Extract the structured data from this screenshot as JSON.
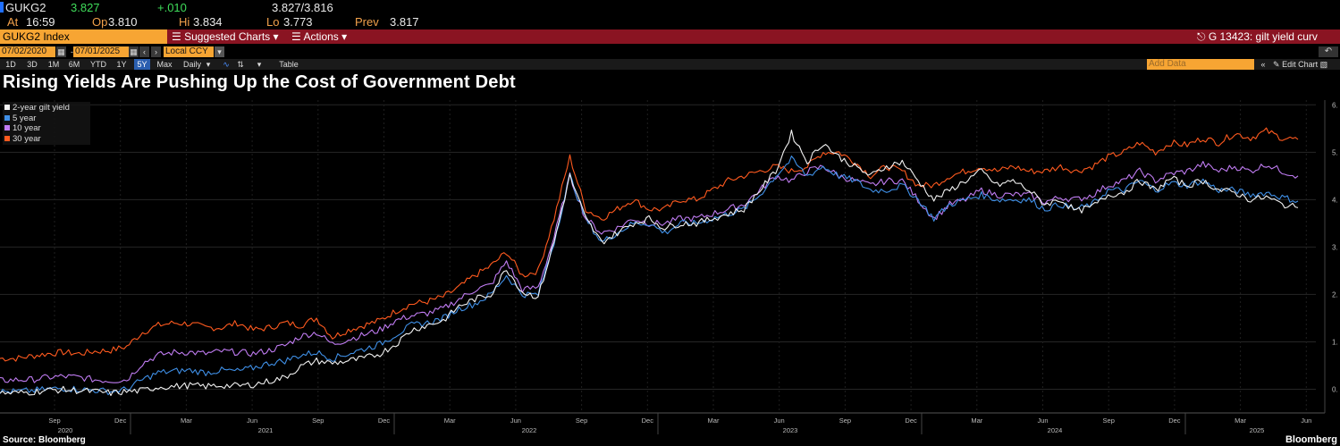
{
  "quote": {
    "ticker": "GUKG2",
    "last": "3.827",
    "change": "+.010",
    "bid_ask": "3.827/3.816",
    "at_label": "At",
    "at_time": "16:59",
    "open_label": "Op",
    "open": "3.810",
    "high_label": "Hi",
    "high": "3.834",
    "low_label": "Lo",
    "low": "3.773",
    "prev_label": "Prev",
    "prev": "3.817"
  },
  "toolbar": {
    "index": "GUKG2 Index",
    "suggested_charts": "Suggested Charts",
    "actions": "Actions",
    "chart_ref": "G 13423: gilt yield curv"
  },
  "date_range": {
    "start": "07/02/2020",
    "end": "07/01/2025",
    "currency": "Local CCY",
    "add_data": "Add Data"
  },
  "range_buttons": [
    "1D",
    "3D",
    "1M",
    "6M",
    "YTD",
    "1Y",
    "5Y",
    "Max",
    "Daily"
  ],
  "table_label": "Table",
  "edit_chart": "Edit Chart",
  "chart_data": {
    "type": "line",
    "title": "Rising Yields Are Pushing Up the Cost of Government Debt",
    "ylim": [
      -0.5,
      6.1
    ],
    "yticks": [
      "0.",
      "1.",
      "2.",
      "3.",
      "4.",
      "5.",
      "6."
    ],
    "xticks_months": [
      "Sep",
      "Dec",
      "Mar",
      "Jun",
      "Sep",
      "Dec",
      "Mar",
      "Jun",
      "Sep",
      "Dec",
      "Mar",
      "Jun",
      "Sep",
      "Dec",
      "Mar",
      "Jun",
      "Sep",
      "Dec",
      "Mar",
      "Jun"
    ],
    "xticks_years": [
      "2020",
      "2021",
      "2022",
      "2023",
      "2024",
      "2025"
    ],
    "x_start": "2020-07-02",
    "x_end": "2025-07-01",
    "series": [
      {
        "name": "2-year gilt yield",
        "color": "#f2f2f2",
        "values": [
          -0.08,
          -0.08,
          -0.06,
          -0.02,
          -0.01,
          -0.03,
          -0.05,
          -0.08,
          -0.05,
          -0.03,
          0.05,
          0.06,
          0.08,
          0.06,
          0.08,
          0.07,
          0.1,
          0.17,
          0.25,
          0.48,
          0.6,
          0.55,
          0.6,
          0.65,
          0.75,
          0.95,
          1.25,
          1.35,
          1.45,
          1.75,
          1.9,
          2.0,
          2.55,
          2.05,
          1.95,
          3.1,
          4.5,
          3.6,
          3.1,
          3.3,
          3.5,
          3.6,
          3.4,
          3.5,
          3.5,
          3.6,
          3.7,
          3.8,
          4.2,
          4.6,
          5.4,
          4.8,
          5.2,
          4.9,
          4.7,
          4.5,
          4.7,
          4.8,
          4.4,
          4.0,
          4.2,
          4.4,
          4.6,
          4.3,
          4.4,
          4.2,
          3.9,
          4.0,
          3.75,
          3.85,
          4.1,
          4.15,
          4.4,
          4.2,
          4.45,
          4.3,
          4.4,
          4.2,
          4.15,
          4.0,
          4.05,
          3.9,
          3.83
        ]
      },
      {
        "name": "5 year",
        "color": "#3f8fe6",
        "values": [
          -0.05,
          -0.05,
          -0.03,
          0.0,
          0.02,
          0.0,
          -0.02,
          -0.05,
          0.0,
          0.2,
          0.35,
          0.38,
          0.4,
          0.35,
          0.4,
          0.38,
          0.45,
          0.55,
          0.6,
          0.72,
          0.78,
          0.65,
          0.75,
          0.85,
          0.95,
          1.15,
          1.35,
          1.4,
          1.5,
          1.7,
          1.8,
          2.0,
          2.4,
          2.0,
          2.0,
          3.1,
          4.5,
          3.6,
          3.1,
          3.3,
          3.5,
          3.5,
          3.3,
          3.5,
          3.5,
          3.6,
          3.7,
          3.8,
          4.1,
          4.5,
          4.85,
          4.5,
          4.7,
          4.5,
          4.4,
          4.2,
          4.2,
          4.3,
          4.0,
          3.6,
          3.9,
          4.0,
          4.1,
          4.0,
          4.0,
          4.0,
          3.8,
          3.9,
          3.8,
          3.9,
          4.2,
          4.2,
          4.4,
          4.2,
          4.35,
          4.3,
          4.4,
          4.2,
          4.2,
          4.1,
          4.15,
          4.05,
          3.97
        ]
      },
      {
        "name": "10 year",
        "color": "#c07cf2",
        "values": [
          0.18,
          0.2,
          0.2,
          0.25,
          0.27,
          0.25,
          0.2,
          0.18,
          0.2,
          0.55,
          0.72,
          0.78,
          0.78,
          0.75,
          0.8,
          0.78,
          0.75,
          0.82,
          0.92,
          1.12,
          1.2,
          0.95,
          1.05,
          1.15,
          1.25,
          1.45,
          1.55,
          1.6,
          1.7,
          1.9,
          2.1,
          2.2,
          2.7,
          2.1,
          2.15,
          3.2,
          4.5,
          3.6,
          3.3,
          3.4,
          3.6,
          3.5,
          3.5,
          3.6,
          3.6,
          3.7,
          3.8,
          3.9,
          4.2,
          4.5,
          4.4,
          4.6,
          4.7,
          4.5,
          4.4,
          4.3,
          4.4,
          4.4,
          4.0,
          3.6,
          3.9,
          4.0,
          4.2,
          4.1,
          4.1,
          4.1,
          3.95,
          4.05,
          4.0,
          4.1,
          4.3,
          4.4,
          4.6,
          4.4,
          4.55,
          4.6,
          4.75,
          4.6,
          4.7,
          4.6,
          4.75,
          4.6,
          4.5
        ]
      },
      {
        "name": "30 year",
        "color": "#ff5a1f",
        "values": [
          0.65,
          0.65,
          0.7,
          0.75,
          0.78,
          0.75,
          0.8,
          0.82,
          0.9,
          1.2,
          1.35,
          1.4,
          1.38,
          1.3,
          1.3,
          1.4,
          1.25,
          1.3,
          1.4,
          1.35,
          1.5,
          1.1,
          1.25,
          1.35,
          1.45,
          1.65,
          1.8,
          1.85,
          1.95,
          2.15,
          2.4,
          2.6,
          2.9,
          2.4,
          2.5,
          3.6,
          4.9,
          3.8,
          3.6,
          3.8,
          4.0,
          3.8,
          3.8,
          4.0,
          4.0,
          4.2,
          4.4,
          4.5,
          4.6,
          4.7,
          4.6,
          4.7,
          5.0,
          5.0,
          4.8,
          4.5,
          4.7,
          4.6,
          4.3,
          4.3,
          4.5,
          4.6,
          4.7,
          4.6,
          4.7,
          4.6,
          4.6,
          4.7,
          4.6,
          4.7,
          4.9,
          5.0,
          5.2,
          5.0,
          5.2,
          5.15,
          5.3,
          5.2,
          5.4,
          5.3,
          5.45,
          5.3,
          5.27
        ]
      }
    ]
  },
  "footer": {
    "source": "Source: Bloomberg",
    "brand": "Bloomberg"
  }
}
